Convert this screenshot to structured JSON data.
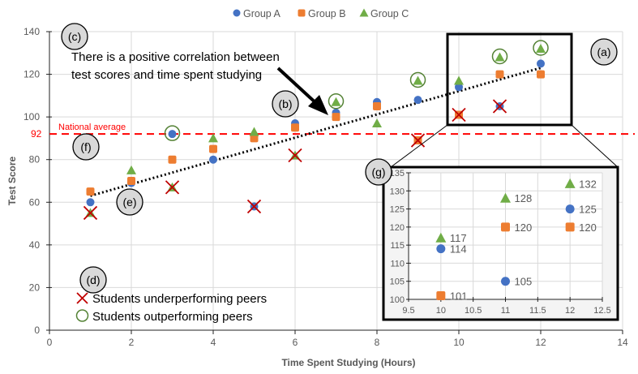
{
  "chart_data": {
    "type": "scatter",
    "xlabel": "Time Spent Studying (Hours)",
    "ylabel": "Test Score",
    "xlim": [
      0,
      14
    ],
    "ylim": [
      0,
      140
    ],
    "xticks": [
      0,
      2,
      4,
      6,
      8,
      10,
      12,
      14
    ],
    "yticks": [
      0,
      20,
      40,
      60,
      80,
      100,
      120,
      140
    ],
    "grid": true,
    "legend_position": "top-right",
    "series": [
      {
        "name": "Group A",
        "color": "#4472c4",
        "marker": "circle",
        "x": [
          1,
          2,
          3,
          4,
          5,
          6,
          7,
          8,
          9,
          10,
          11,
          12
        ],
        "y": [
          60,
          69,
          92,
          80,
          58,
          97,
          102,
          107,
          108,
          114,
          105,
          125
        ]
      },
      {
        "name": "Group B",
        "color": "#ed7d31",
        "marker": "square",
        "x": [
          1,
          2,
          3,
          4,
          5,
          6,
          7,
          8,
          9,
          10,
          11,
          12
        ],
        "y": [
          65,
          70,
          80,
          85,
          90,
          95,
          100,
          105,
          89,
          101,
          120,
          120
        ]
      },
      {
        "name": "Group C",
        "color": "#70ad47",
        "marker": "triangle",
        "x": [
          1,
          2,
          3,
          4,
          5,
          6,
          7,
          8,
          9,
          10,
          11,
          12
        ],
        "y": [
          55,
          75,
          67,
          90,
          93,
          82,
          107,
          97,
          117,
          117,
          128,
          132
        ]
      }
    ],
    "underperforming": [
      {
        "series": "Group C",
        "x": 1
      },
      {
        "series": "Group C",
        "x": 3
      },
      {
        "series": "Group A",
        "x": 5
      },
      {
        "series": "Group C",
        "x": 6
      },
      {
        "series": "Group B",
        "x": 9
      },
      {
        "series": "Group B",
        "x": 10
      },
      {
        "series": "Group A",
        "x": 11
      }
    ],
    "outperforming": [
      {
        "series": "Group A",
        "x": 3
      },
      {
        "series": "Group C",
        "x": 7
      },
      {
        "series": "Group C",
        "x": 9
      },
      {
        "series": "Group C",
        "x": 11
      },
      {
        "series": "Group C",
        "x": 12
      }
    ],
    "trendline": {
      "style": "dotted",
      "color": "#000000",
      "x": [
        1,
        12
      ],
      "y": [
        63,
        123
      ]
    },
    "reference_line": {
      "label": "National average",
      "value": 92,
      "value_label": "92",
      "color": "#ff0000",
      "style": "dashed"
    },
    "annotation_text": [
      "There is a positive correlation between",
      "test scores and time spent studying"
    ],
    "markers_legend": {
      "under": "Students underperforming peers",
      "over": "Students outperforming peers",
      "under_color": "#c00000",
      "over_color": "#548235"
    },
    "callouts": [
      "(a)",
      "(b)",
      "(c)",
      "(d)",
      "(e)",
      "(f)",
      "(g)"
    ],
    "inset": {
      "xlim": [
        9.5,
        12.5
      ],
      "ylim": [
        100,
        135
      ],
      "xticks": [
        "9.5",
        "10",
        "10.5",
        "11",
        "11.5",
        "12",
        "12.5"
      ],
      "yticks": [
        "100",
        "105",
        "110",
        "115",
        "120",
        "125",
        "130",
        "135"
      ],
      "zoom_x": [
        10,
        12
      ]
    }
  }
}
